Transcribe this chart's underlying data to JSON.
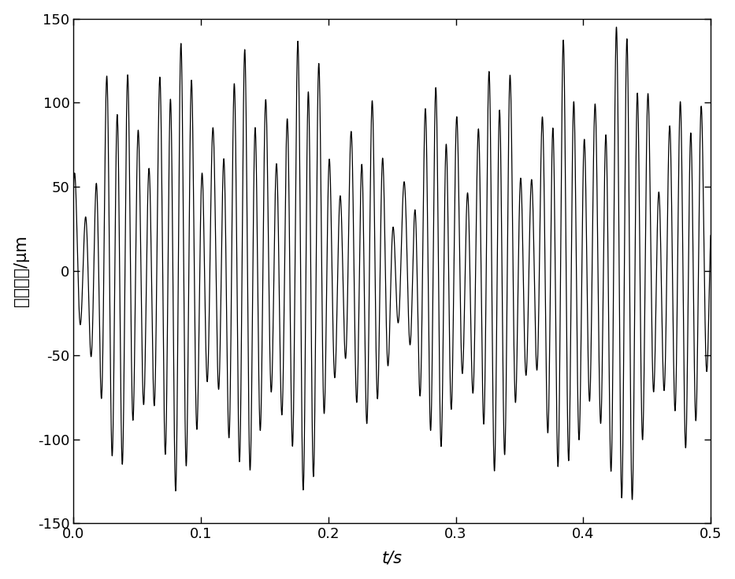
{
  "xlabel": "t/s",
  "ylabel": "水平位移/μm",
  "xlim": [
    0,
    0.5
  ],
  "ylim": [
    -150,
    150
  ],
  "xticks": [
    0,
    0.1,
    0.2,
    0.3,
    0.4,
    0.5
  ],
  "yticks": [
    -150,
    -100,
    -50,
    0,
    50,
    100,
    150
  ],
  "line_color": "#000000",
  "line_width": 0.9,
  "background_color": "#ffffff",
  "sample_rate": 20000,
  "duration": 0.5,
  "f_carrier": 120.0,
  "f_am1": 20.0,
  "f_am2": 8.0,
  "f_am3": 3.5,
  "A_main": 120.0,
  "A_am1": 0.45,
  "A_am2": 0.3,
  "A_am3": 0.2,
  "ph0": 0.8,
  "ph1": 1.1,
  "ph2": 0.4,
  "ph3": 2.1,
  "f_sub1": 47.0,
  "A_sub1": 18.0,
  "ph_sub1": 0.6,
  "f_sub2": 73.0,
  "A_sub2": 12.0,
  "ph_sub2": 1.8
}
